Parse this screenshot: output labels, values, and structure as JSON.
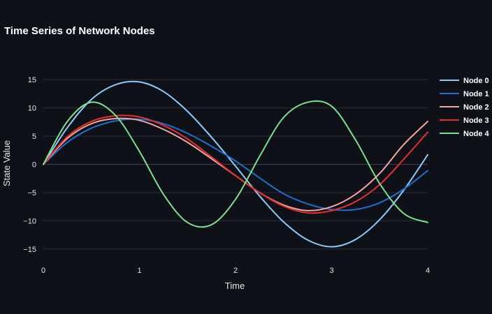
{
  "chart_data": {
    "type": "line",
    "title": "Time Series of Network Nodes",
    "xlabel": "Time",
    "ylabel": "State Value",
    "xlim": [
      0,
      4
    ],
    "ylim": [
      -16.5,
      17
    ],
    "xticks": [
      "0",
      "1",
      "2",
      "3",
      "4"
    ],
    "yticks": [
      "15",
      "10",
      "5",
      "0",
      "−5",
      "−10",
      "−15"
    ],
    "grid": true,
    "legend_position": "top-right",
    "x": [
      0,
      0.25,
      0.5,
      0.75,
      1,
      1.25,
      1.5,
      1.75,
      2,
      2.25,
      2.5,
      2.75,
      3,
      3.25,
      3.5,
      3.75,
      4
    ],
    "series": [
      {
        "name": "Node 0",
        "color": "#8ecbf7",
        "values": [
          0,
          6.5,
          11.5,
          14.1,
          14.6,
          12.9,
          9.4,
          4.8,
          -0.3,
          -5.6,
          -10.2,
          -13.4,
          -14.6,
          -13.3,
          -9.8,
          -4.6,
          1.7
        ]
      },
      {
        "name": "Node 1",
        "color": "#1f6fd1",
        "values": [
          0,
          3.9,
          6.4,
          7.7,
          8.0,
          7.2,
          5.5,
          3.2,
          0.6,
          -2.4,
          -5.2,
          -7.0,
          -8.0,
          -8.0,
          -6.8,
          -4.4,
          -1.1
        ]
      },
      {
        "name": "Node 2",
        "color": "#f4a6a0",
        "values": [
          0,
          4.6,
          7.2,
          8.1,
          7.8,
          6.2,
          3.9,
          1.0,
          -2.0,
          -5.0,
          -7.2,
          -8.2,
          -7.5,
          -5.3,
          -1.6,
          3.5,
          7.6
        ]
      },
      {
        "name": "Node 3",
        "color": "#e8312f",
        "values": [
          0,
          4.9,
          7.6,
          8.6,
          8.4,
          6.9,
          4.5,
          1.3,
          -2.0,
          -5.0,
          -7.4,
          -8.6,
          -8.2,
          -6.6,
          -3.6,
          0.9,
          5.7
        ]
      },
      {
        "name": "Node 4",
        "color": "#7be38e",
        "values": [
          0,
          7.6,
          11.0,
          8.7,
          2.3,
          -5.3,
          -10.3,
          -10.7,
          -6.2,
          1.4,
          8.3,
          11.0,
          10.3,
          4.3,
          -3.4,
          -8.7,
          -10.3
        ]
      }
    ]
  }
}
